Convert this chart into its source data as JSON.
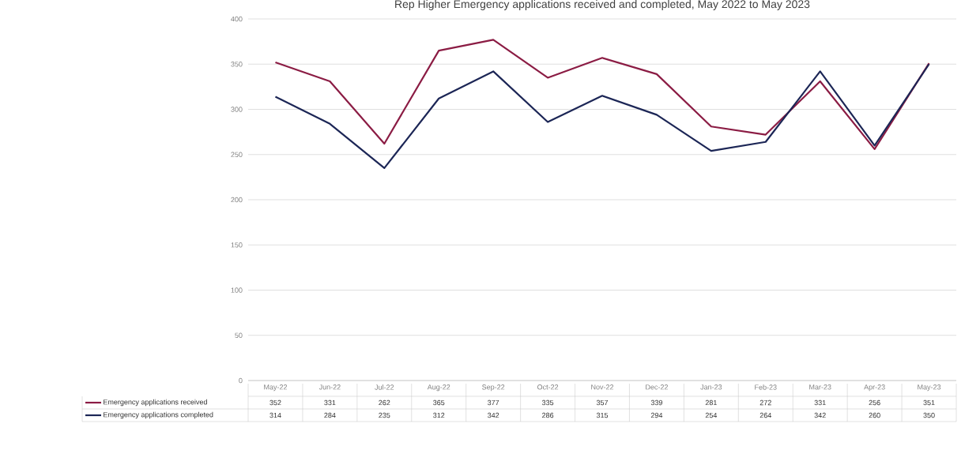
{
  "chart_data": {
    "type": "line",
    "title": "Rep Higher Emergency applications received and completed, May 2022 to May 2023",
    "categories": [
      "May-22",
      "Jun-22",
      "Jul-22",
      "Aug-22",
      "Sep-22",
      "Oct-22",
      "Nov-22",
      "Dec-22",
      "Jan-23",
      "Feb-23",
      "Mar-23",
      "Apr-23",
      "May-23"
    ],
    "series": [
      {
        "name": "Emergency applications received",
        "color": "#8b1c44",
        "values": [
          352,
          331,
          262,
          365,
          377,
          335,
          357,
          339,
          281,
          272,
          331,
          256,
          351
        ]
      },
      {
        "name": "Emergency applications completed",
        "color": "#1c2656",
        "values": [
          314,
          284,
          235,
          312,
          342,
          286,
          315,
          294,
          254,
          264,
          342,
          260,
          350
        ]
      }
    ],
    "ylim": [
      0,
      400
    ],
    "yticks": [
      0,
      50,
      100,
      150,
      200,
      250,
      300,
      350,
      400
    ],
    "grid": "y",
    "legend": "bottom left",
    "data_labels": true,
    "marker": "none",
    "line_style": "solid"
  }
}
